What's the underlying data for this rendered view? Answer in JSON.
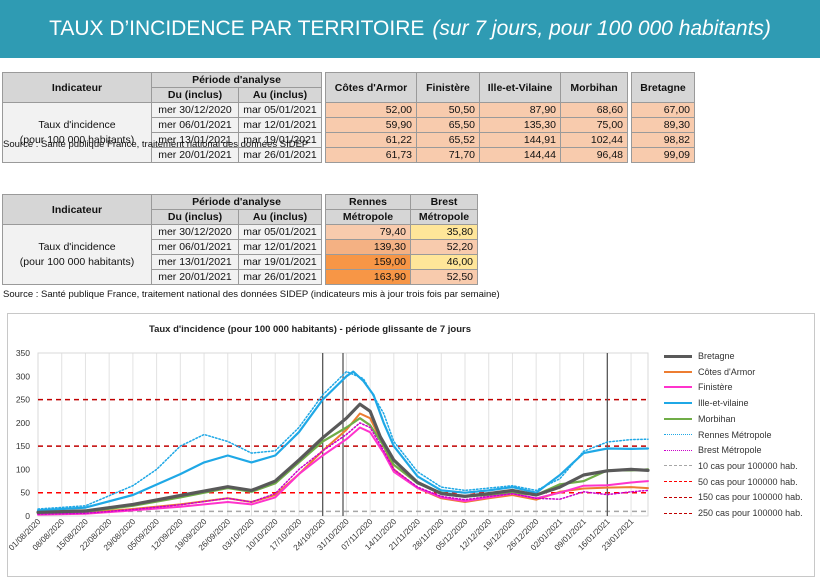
{
  "header": {
    "title": "TAUX D’INCIDENCE PAR TERRITOIRE",
    "subtitle": "(sur 7 jours, pour 100 000 habitants)",
    "bg_color": "#2f9bb3"
  },
  "table1": {
    "h_indicator": "Indicateur",
    "h_period": "Période d'analyse",
    "h_from": "Du (inclus)",
    "h_to": "Au (inclus)",
    "h_cotes": "Côtes d'Armor",
    "h_finistere": "Finistère",
    "h_ille": "Ille-et-Vilaine",
    "h_morbihan": "Morbihan",
    "h_bretagne": "Bretagne",
    "label_line1": "Taux d'incidence",
    "label_line2": "(pour 100 000 habitants)",
    "rows": [
      {
        "from": "mer 30/12/2020",
        "to": "mar 05/01/2021",
        "cotes": "52,00",
        "finistere": "50,50",
        "ille": "87,90",
        "morbihan": "68,60",
        "bretagne": "67,00"
      },
      {
        "from": "mer 06/01/2021",
        "to": "mar 12/01/2021",
        "cotes": "59,90",
        "finistere": "65,50",
        "ille": "135,30",
        "morbihan": "75,00",
        "bretagne": "89,30"
      },
      {
        "from": "mer 13/01/2021",
        "to": "mar 19/01/2021",
        "cotes": "61,22",
        "finistere": "65,52",
        "ille": "144,91",
        "morbihan": "102,44",
        "bretagne": "98,82"
      },
      {
        "from": "mer 20/01/2021",
        "to": "mar 26/01/2021",
        "cotes": "61,73",
        "finistere": "71,70",
        "ille": "144,44",
        "morbihan": "96,48",
        "bretagne": "99,09"
      }
    ],
    "cell_color": "#f8cbad",
    "source": "Source  : Santé publique France, traitement national des données SIDEP"
  },
  "table2": {
    "h_indicator": "Indicateur",
    "h_period": "Période d'analyse",
    "h_from": "Du (inclus)",
    "h_to": "Au (inclus)",
    "h_rennes1": "Rennes",
    "h_rennes2": "Métropole",
    "h_brest1": "Brest",
    "h_brest2": "Métropole",
    "label_line1": "Taux d'incidence",
    "label_line2": "(pour 100 000 habitants)",
    "rows": [
      {
        "from": "mer 30/12/2020",
        "to": "mar 05/01/2021",
        "rennes": "79,40",
        "brest": "35,80",
        "rennes_color": "#f8cbad",
        "brest_color": "#ffe699"
      },
      {
        "from": "mer 06/01/2021",
        "to": "mar 12/01/2021",
        "rennes": "139,30",
        "brest": "52,20",
        "rennes_color": "#f4b183",
        "brest_color": "#f8cbad"
      },
      {
        "from": "mer 13/01/2021",
        "to": "mar 19/01/2021",
        "rennes": "159,00",
        "brest": "46,00",
        "rennes_color": "#f79646",
        "brest_color": "#ffe699"
      },
      {
        "from": "mer 20/01/2021",
        "to": "mar 26/01/2021",
        "rennes": "163,90",
        "brest": "52,50",
        "rennes_color": "#f79646",
        "brest_color": "#f8cbad"
      }
    ],
    "source": "Source  : Santé publique France, traitement national des données SIDEP (indicateurs mis à jour trois fois par semaine)"
  },
  "chart_data": {
    "type": "line",
    "title": "Taux d'incidence (pour 100 000 habitants) - période glissante de 7 jours",
    "xlabel": "",
    "ylabel": "",
    "ylim": [
      0,
      350
    ],
    "yticks": [
      0,
      50,
      100,
      150,
      200,
      250,
      300,
      350
    ],
    "xlim": [
      "01/08/2020",
      "28/01/2021"
    ],
    "xticks": [
      "01/08/2020",
      "08/08/2020",
      "15/08/2020",
      "22/08/2020",
      "29/08/2020",
      "05/09/2020",
      "12/09/2020",
      "19/09/2020",
      "26/09/2020",
      "03/10/2020",
      "10/10/2020",
      "17/10/2020",
      "24/10/2020",
      "31/10/2020",
      "07/11/2020",
      "14/11/2020",
      "21/11/2020",
      "28/11/2020",
      "05/12/2020",
      "12/12/2020",
      "19/12/2020",
      "26/12/2020",
      "02/01/2021",
      "09/01/2021",
      "16/01/2021",
      "23/01/2021"
    ],
    "grid": "vertical",
    "legend": "right",
    "vertical_markers": [
      "24/10/2020",
      "30/10/2020",
      "16/01/2021"
    ],
    "series": [
      {
        "name": "Bretagne",
        "color": "#595959",
        "style": "solid",
        "width": 3.2,
        "points": [
          [
            "01/08/2020",
            8
          ],
          [
            "15/08/2020",
            11
          ],
          [
            "29/08/2020",
            25
          ],
          [
            "12/09/2020",
            44
          ],
          [
            "26/09/2020",
            63
          ],
          [
            "03/10/2020",
            55
          ],
          [
            "10/10/2020",
            75
          ],
          [
            "17/10/2020",
            120
          ],
          [
            "24/10/2020",
            168
          ],
          [
            "31/10/2020",
            210
          ],
          [
            "04/11/2020",
            240
          ],
          [
            "07/11/2020",
            225
          ],
          [
            "10/11/2020",
            170
          ],
          [
            "14/11/2020",
            120
          ],
          [
            "21/11/2020",
            72
          ],
          [
            "28/11/2020",
            48
          ],
          [
            "05/12/2020",
            42
          ],
          [
            "12/12/2020",
            48
          ],
          [
            "19/12/2020",
            55
          ],
          [
            "26/12/2020",
            45
          ],
          [
            "02/01/2021",
            62
          ],
          [
            "09/01/2021",
            88
          ],
          [
            "16/01/2021",
            97
          ],
          [
            "23/01/2021",
            100
          ],
          [
            "28/01/2021",
            98
          ]
        ]
      },
      {
        "name": "Côtes d'Armor",
        "color": "#ed7d31",
        "style": "solid",
        "width": 2,
        "points": [
          [
            "01/08/2020",
            5
          ],
          [
            "15/08/2020",
            7
          ],
          [
            "29/08/2020",
            15
          ],
          [
            "12/09/2020",
            25
          ],
          [
            "26/09/2020",
            38
          ],
          [
            "03/10/2020",
            30
          ],
          [
            "10/10/2020",
            45
          ],
          [
            "17/10/2020",
            90
          ],
          [
            "24/10/2020",
            140
          ],
          [
            "31/10/2020",
            185
          ],
          [
            "04/11/2020",
            220
          ],
          [
            "07/11/2020",
            210
          ],
          [
            "11/11/2020",
            150
          ],
          [
            "14/11/2020",
            100
          ],
          [
            "21/11/2020",
            60
          ],
          [
            "28/11/2020",
            38
          ],
          [
            "05/12/2020",
            30
          ],
          [
            "12/12/2020",
            38
          ],
          [
            "19/12/2020",
            45
          ],
          [
            "26/12/2020",
            35
          ],
          [
            "02/01/2021",
            52
          ],
          [
            "09/01/2021",
            59
          ],
          [
            "16/01/2021",
            61
          ],
          [
            "23/01/2021",
            62
          ],
          [
            "28/01/2021",
            60
          ]
        ]
      },
      {
        "name": "Finistère",
        "color": "#ff33cc",
        "style": "solid",
        "width": 2,
        "points": [
          [
            "01/08/2020",
            3
          ],
          [
            "15/08/2020",
            5
          ],
          [
            "29/08/2020",
            12
          ],
          [
            "12/09/2020",
            20
          ],
          [
            "26/09/2020",
            30
          ],
          [
            "03/10/2020",
            25
          ],
          [
            "10/10/2020",
            40
          ],
          [
            "17/10/2020",
            90
          ],
          [
            "24/10/2020",
            130
          ],
          [
            "31/10/2020",
            165
          ],
          [
            "04/11/2020",
            190
          ],
          [
            "07/11/2020",
            180
          ],
          [
            "11/11/2020",
            135
          ],
          [
            "14/11/2020",
            95
          ],
          [
            "21/11/2020",
            60
          ],
          [
            "28/11/2020",
            40
          ],
          [
            "05/12/2020",
            32
          ],
          [
            "12/12/2020",
            40
          ],
          [
            "19/12/2020",
            48
          ],
          [
            "26/12/2020",
            38
          ],
          [
            "02/01/2021",
            50
          ],
          [
            "09/01/2021",
            65
          ],
          [
            "16/01/2021",
            66
          ],
          [
            "23/01/2021",
            72
          ],
          [
            "28/01/2021",
            75
          ]
        ]
      },
      {
        "name": "Ille-et-vilaine",
        "color": "#1fa8e6",
        "style": "solid",
        "width": 2.2,
        "points": [
          [
            "01/08/2020",
            12
          ],
          [
            "15/08/2020",
            18
          ],
          [
            "29/08/2020",
            45
          ],
          [
            "12/09/2020",
            90
          ],
          [
            "19/09/2020",
            115
          ],
          [
            "26/09/2020",
            130
          ],
          [
            "03/10/2020",
            115
          ],
          [
            "10/10/2020",
            130
          ],
          [
            "17/10/2020",
            180
          ],
          [
            "24/10/2020",
            250
          ],
          [
            "31/10/2020",
            300
          ],
          [
            "02/11/2020",
            310
          ],
          [
            "05/11/2020",
            290
          ],
          [
            "08/11/2020",
            260
          ],
          [
            "11/11/2020",
            200
          ],
          [
            "14/11/2020",
            150
          ],
          [
            "21/11/2020",
            85
          ],
          [
            "28/11/2020",
            55
          ],
          [
            "05/12/2020",
            50
          ],
          [
            "12/12/2020",
            55
          ],
          [
            "19/12/2020",
            62
          ],
          [
            "26/12/2020",
            50
          ],
          [
            "02/01/2021",
            88
          ],
          [
            "09/01/2021",
            135
          ],
          [
            "16/01/2021",
            145
          ],
          [
            "23/01/2021",
            144
          ],
          [
            "28/01/2021",
            145
          ]
        ]
      },
      {
        "name": "Morbihan",
        "color": "#70ad47",
        "style": "solid",
        "width": 2.2,
        "points": [
          [
            "01/08/2020",
            6
          ],
          [
            "15/08/2020",
            9
          ],
          [
            "29/08/2020",
            22
          ],
          [
            "12/09/2020",
            40
          ],
          [
            "26/09/2020",
            60
          ],
          [
            "03/10/2020",
            52
          ],
          [
            "10/10/2020",
            70
          ],
          [
            "17/10/2020",
            115
          ],
          [
            "24/10/2020",
            160
          ],
          [
            "31/10/2020",
            190
          ],
          [
            "04/11/2020",
            210
          ],
          [
            "07/11/2020",
            195
          ],
          [
            "11/11/2020",
            150
          ],
          [
            "14/11/2020",
            110
          ],
          [
            "21/11/2020",
            70
          ],
          [
            "28/11/2020",
            50
          ],
          [
            "05/12/2020",
            42
          ],
          [
            "12/12/2020",
            45
          ],
          [
            "19/12/2020",
            50
          ],
          [
            "26/12/2020",
            45
          ],
          [
            "02/01/2021",
            68
          ],
          [
            "09/01/2021",
            75
          ],
          [
            "16/01/2021",
            98
          ],
          [
            "23/01/2021",
            98
          ],
          [
            "28/01/2021",
            100
          ]
        ]
      },
      {
        "name": "Rennes Métropole",
        "color": "#1fa8e6",
        "style": "dotted",
        "width": 1.5,
        "points": [
          [
            "01/08/2020",
            15
          ],
          [
            "15/08/2020",
            22
          ],
          [
            "29/08/2020",
            65
          ],
          [
            "05/09/2020",
            100
          ],
          [
            "12/09/2020",
            150
          ],
          [
            "19/09/2020",
            175
          ],
          [
            "26/09/2020",
            160
          ],
          [
            "03/10/2020",
            135
          ],
          [
            "10/10/2020",
            140
          ],
          [
            "17/10/2020",
            190
          ],
          [
            "24/10/2020",
            260
          ],
          [
            "31/10/2020",
            310
          ],
          [
            "05/11/2020",
            295
          ],
          [
            "11/11/2020",
            220
          ],
          [
            "14/11/2020",
            160
          ],
          [
            "21/11/2020",
            95
          ],
          [
            "28/11/2020",
            62
          ],
          [
            "05/12/2020",
            55
          ],
          [
            "12/12/2020",
            60
          ],
          [
            "19/12/2020",
            65
          ],
          [
            "26/12/2020",
            55
          ],
          [
            "02/01/2021",
            80
          ],
          [
            "09/01/2021",
            139
          ],
          [
            "16/01/2021",
            159
          ],
          [
            "23/01/2021",
            164
          ],
          [
            "28/01/2021",
            165
          ]
        ]
      },
      {
        "name": "Brest Métropole",
        "color": "#cc00cc",
        "style": "dotted",
        "width": 1.5,
        "points": [
          [
            "01/08/2020",
            4
          ],
          [
            "15/08/2020",
            6
          ],
          [
            "29/08/2020",
            14
          ],
          [
            "12/09/2020",
            24
          ],
          [
            "26/09/2020",
            38
          ],
          [
            "03/10/2020",
            30
          ],
          [
            "10/10/2020",
            48
          ],
          [
            "17/10/2020",
            100
          ],
          [
            "24/10/2020",
            140
          ],
          [
            "31/10/2020",
            175
          ],
          [
            "04/11/2020",
            200
          ],
          [
            "07/11/2020",
            190
          ],
          [
            "11/11/2020",
            140
          ],
          [
            "14/11/2020",
            100
          ],
          [
            "21/11/2020",
            62
          ],
          [
            "28/11/2020",
            42
          ],
          [
            "05/12/2020",
            35
          ],
          [
            "12/12/2020",
            42
          ],
          [
            "19/12/2020",
            48
          ],
          [
            "26/12/2020",
            38
          ],
          [
            "02/01/2021",
            36
          ],
          [
            "09/01/2021",
            52
          ],
          [
            "16/01/2021",
            46
          ],
          [
            "23/01/2021",
            52
          ],
          [
            "28/01/2021",
            55
          ]
        ]
      },
      {
        "name": "10 cas pour 100000 hab.",
        "color": "#a6a6a6",
        "style": "dashed",
        "width": 1.5,
        "constant": 10
      },
      {
        "name": "50 cas pour 100000 hab.",
        "color": "#ff0000",
        "style": "dashed",
        "width": 1.5,
        "constant": 50
      },
      {
        "name": "150 cas pour 100000 hab.",
        "color": "#c00000",
        "style": "dashed",
        "width": 1.5,
        "constant": 150
      },
      {
        "name": "250 cas pour 100000 hab.",
        "color": "#c00000",
        "style": "dashed",
        "width": 1.5,
        "constant": 250
      }
    ]
  }
}
